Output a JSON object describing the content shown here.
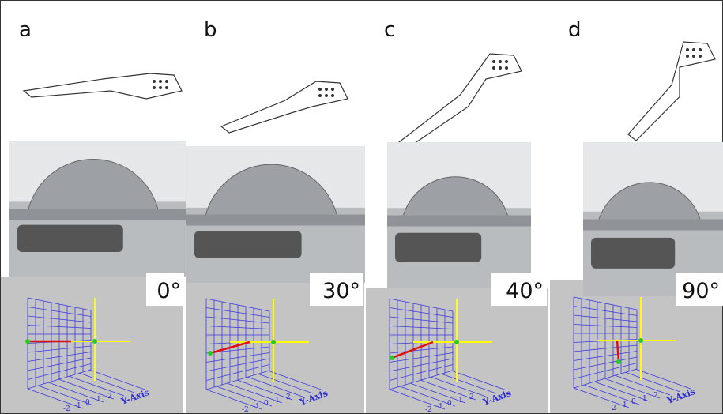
{
  "panels": [
    {
      "letter": "a",
      "angle": "0°"
    },
    {
      "letter": "b",
      "angle": "30°"
    },
    {
      "letter": "c",
      "angle": "40°"
    },
    {
      "letter": "d",
      "angle": "90°"
    }
  ],
  "axis_label": "Y-Axis",
  "axis_ticks": [
    "-2",
    "-1",
    "0",
    "1",
    "2"
  ]
}
